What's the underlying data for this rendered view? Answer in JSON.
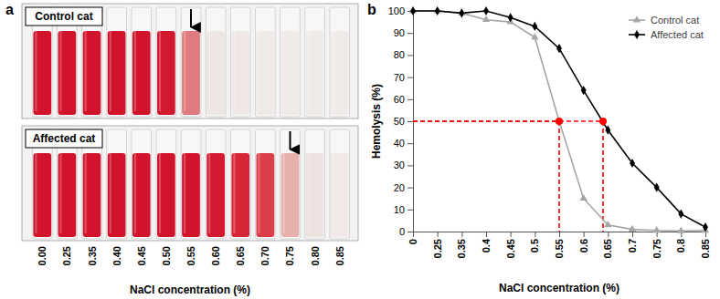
{
  "chart_data": [
    {
      "type": "tubes",
      "title": "a",
      "xlabel": "NaCl concentration (%)",
      "categories": [
        "0.00",
        "0.25",
        "0.35",
        "0.40",
        "0.45",
        "0.50",
        "0.55",
        "0.60",
        "0.65",
        "0.70",
        "0.75",
        "0.80",
        "0.85"
      ],
      "series": [
        {
          "name": "Control cat",
          "arrow": "0.55",
          "colors": [
            "#d1142c",
            "#d1142c",
            "#d1142c",
            "#d1142c",
            "#d1142c",
            "#d3192f",
            "#df7b7f",
            "#eee6e4",
            "#efe8e6",
            "#efe9e7",
            "#f0eae8",
            "#f0eae8",
            "#f0eae8"
          ]
        },
        {
          "name": "Affected cat",
          "arrow": "0.75",
          "colors": [
            "#d1142c",
            "#d1142c",
            "#d1142c",
            "#d1142c",
            "#d1142c",
            "#d1142c",
            "#d1142c",
            "#d31a30",
            "#d62636",
            "#da3f48",
            "#e8b0ad",
            "#eee2e0",
            "#f0e9e7"
          ]
        }
      ]
    },
    {
      "type": "line",
      "title": "b",
      "xlabel": "NaCl concentration (%)",
      "ylabel": "Hemolysis (%)",
      "x": [
        0,
        0.25,
        0.35,
        0.4,
        0.45,
        0.5,
        0.55,
        0.6,
        0.65,
        0.7,
        0.75,
        0.8,
        0.85
      ],
      "xlim": [
        0,
        0.85
      ],
      "xticks": [
        0,
        0.25,
        0.35,
        0.4,
        0.45,
        0.5,
        0.55,
        0.6,
        0.65,
        0.7,
        0.75,
        0.8,
        0.85
      ],
      "ylim": [
        0,
        100
      ],
      "yticks": [
        0,
        10,
        20,
        30,
        40,
        50,
        60,
        70,
        80,
        90,
        100
      ],
      "legend": "upper right",
      "series": [
        {
          "name": "Control cat",
          "color": "#a6a6a6",
          "marker": "triangle",
          "values": [
            100,
            100,
            99,
            96,
            95,
            88,
            50,
            15,
            3,
            1,
            0.5,
            0.3,
            0.5
          ]
        },
        {
          "name": "Affected cat",
          "color": "#000000",
          "marker": "diamond",
          "values": [
            100,
            100,
            99,
            100,
            97,
            93,
            83,
            64,
            46,
            31,
            20,
            8,
            2
          ]
        }
      ],
      "reference_points": [
        {
          "x": 0.55,
          "y": 50
        },
        {
          "x": 0.64,
          "y": 50
        }
      ]
    }
  ]
}
